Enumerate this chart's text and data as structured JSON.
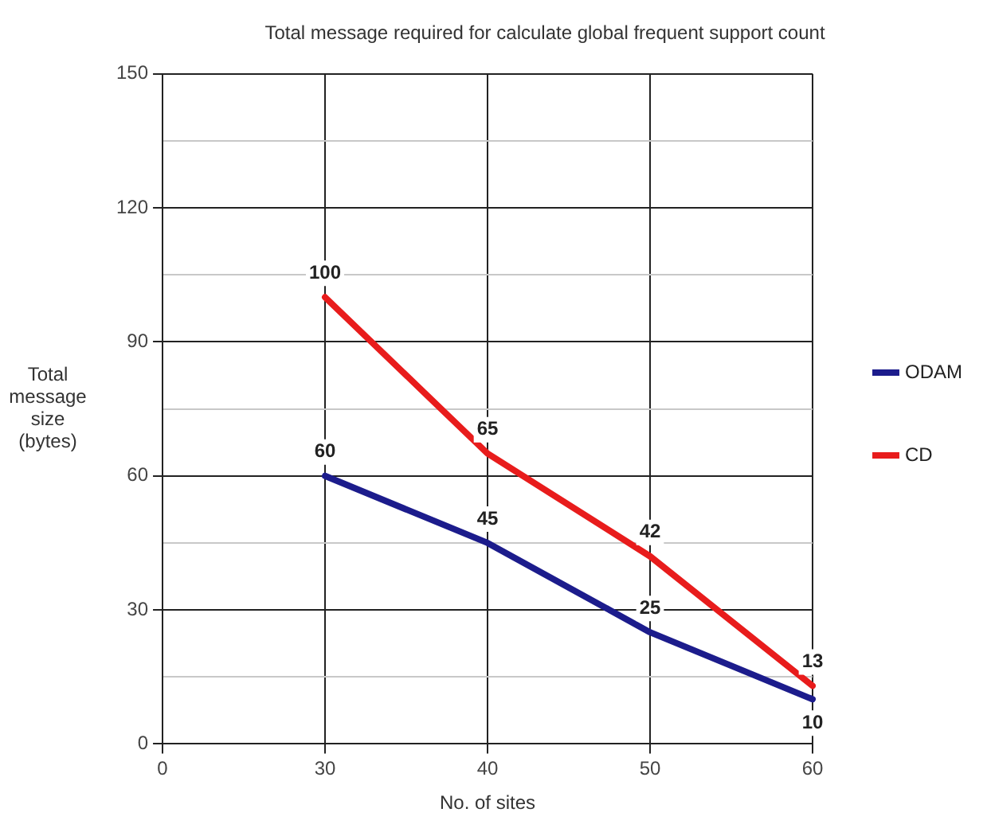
{
  "chart_data": {
    "type": "line",
    "title": "Total message required for calculate global frequent support count",
    "xlabel": "No. of sites",
    "ylabel": "Total message size (bytes)",
    "categories": [
      "0",
      "30",
      "40",
      "50",
      "60"
    ],
    "series": [
      {
        "name": "ODAM",
        "color": "#1c1c8c",
        "values": [
          null,
          60,
          45,
          25,
          10
        ]
      },
      {
        "name": "CD",
        "color": "#e81c1c",
        "values": [
          null,
          100,
          65,
          42,
          13
        ]
      }
    ],
    "ylim": [
      0,
      150
    ],
    "yticks": [
      0,
      {
        "value": 15,
        "label": null
      },
      30,
      {
        "value": 45,
        "label": null
      },
      60,
      {
        "value": 75,
        "label": null
      },
      90,
      {
        "value": 105,
        "label": null
      },
      120,
      {
        "value": 135,
        "label": null
      },
      150
    ],
    "grid": true,
    "legend": "right",
    "marker": "none",
    "line_style": "solid",
    "data_labels": true
  }
}
